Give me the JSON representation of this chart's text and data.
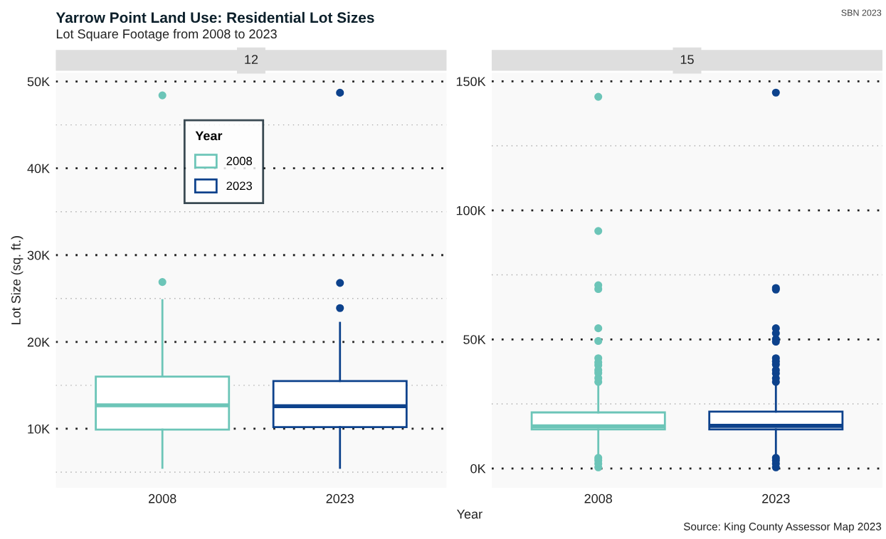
{
  "chart_data": [
    {
      "type": "box",
      "title": "12",
      "xlabel": "Year",
      "ylabel": "Lot Size (sq. ft.)",
      "legend_title": "Year",
      "legend": "top",
      "annotations": [
        "Yarrow Point Land Use: Residential Lot Sizes",
        "Lot Square Footage from 2008 to 2023",
        "SBN 2023",
        "Source: King County Assessor Map 2023"
      ],
      "categories": [
        "2008",
        "2023"
      ],
      "series": [
        {
          "name": "2008",
          "color": "#6cc5b8",
          "boxes": [
            {
              "low": 5500,
              "q1": 9900,
              "median": 12700,
              "q3": 16000,
              "high": 24800,
              "outliers": [
                26900,
                48400
              ]
            },
            null
          ]
        },
        {
          "name": "2023",
          "color": "#0d428c",
          "boxes": [
            null,
            {
              "low": 5500,
              "q1": 10200,
              "median": 12600,
              "q3": 15500,
              "high": 22200,
              "outliers": [
                23900,
                26800,
                48700
              ]
            }
          ]
        }
      ],
      "ylim": [
        3200,
        51000
      ],
      "yticks": [
        {
          "value": 5000,
          "label": null
        },
        {
          "value": 10000,
          "label": "10K"
        },
        {
          "value": 15000,
          "label": null
        },
        {
          "value": 20000,
          "label": "20K"
        },
        {
          "value": 25000,
          "label": null
        },
        {
          "value": 30000,
          "label": "30K"
        },
        {
          "value": 35000,
          "label": null
        },
        {
          "value": 40000,
          "label": "40K"
        },
        {
          "value": 45000,
          "label": null
        },
        {
          "value": 50000,
          "label": "50K"
        }
      ],
      "grid": "y"
    },
    {
      "type": "box",
      "title": "15",
      "categories": [
        "2008",
        "2023"
      ],
      "series": [
        {
          "color": "#6cc5b8",
          "boxes": [
            {
              "low": 5000,
              "q1": 15100,
              "median": 16300,
              "q3": 21700,
              "high": 32000,
              "outliers": [
                400,
                1800,
                3100,
                4100,
                33500,
                35000,
                37000,
                38100,
                40000,
                41100,
                42700,
                49400,
                54300,
                69500,
                71000,
                92000,
                144000
              ]
            },
            null
          ]
        },
        {
          "color": "#0d428c",
          "boxes": [
            null,
            {
              "low": 5000,
              "q1": 15100,
              "median": 16500,
              "q3": 22000,
              "high": 32500,
              "outliers": [
                400,
                1800,
                3100,
                4100,
                33500,
                34900,
                36800,
                38100,
                40300,
                41500,
                42700,
                49100,
                50100,
                52400,
                54300,
                69300,
                69900,
                145600
              ]
            }
          ]
        }
      ],
      "ylim": [
        -7500,
        153300
      ],
      "yticks": [
        {
          "value": 0,
          "label": "0K"
        },
        {
          "value": 25000,
          "label": null
        },
        {
          "value": 50000,
          "label": "50K"
        },
        {
          "value": 75000,
          "label": null
        },
        {
          "value": 100000,
          "label": "100K"
        },
        {
          "value": 125000,
          "label": null
        },
        {
          "value": 150000,
          "label": "150K"
        }
      ],
      "grid": "y"
    }
  ]
}
